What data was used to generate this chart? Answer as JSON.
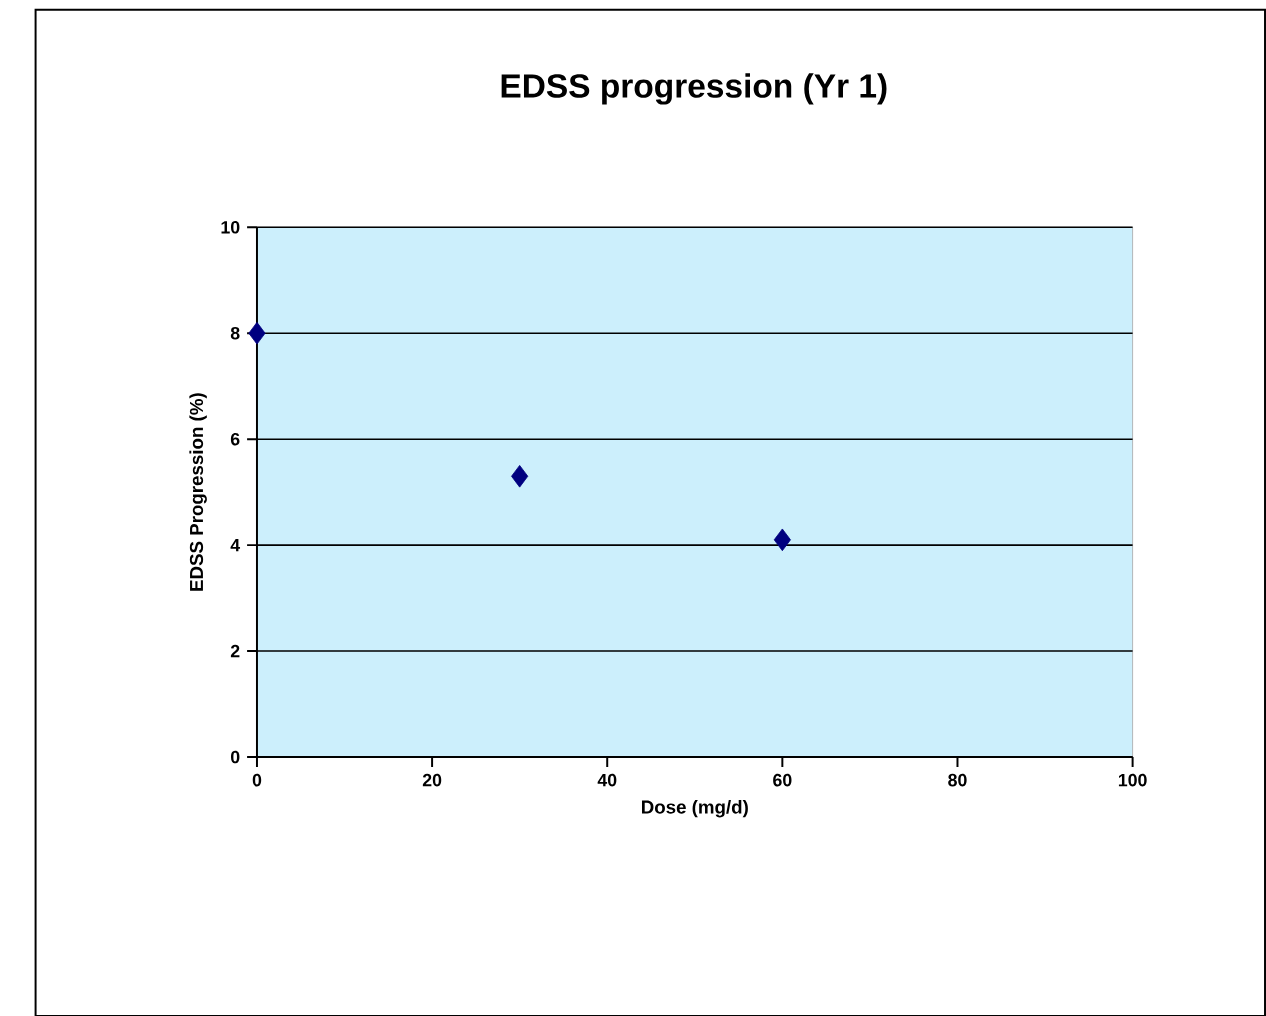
{
  "chart_data": {
    "type": "scatter",
    "title": "EDSS progression (Yr 1)",
    "xlabel": "Dose (mg/d)",
    "ylabel": "EDSS Progression (%)",
    "series": [
      {
        "color": "#000080",
        "x": [
          0,
          30,
          60
        ],
        "values": [
          8,
          5.3,
          4.1
        ]
      }
    ],
    "xlim": [
      0,
      100
    ],
    "xticks": [
      0,
      20,
      40,
      60,
      80,
      100
    ],
    "ylim": [
      0,
      10
    ],
    "yticks": [
      0,
      2,
      4,
      6,
      8,
      10
    ],
    "grid": "y",
    "marker": "diamond"
  }
}
